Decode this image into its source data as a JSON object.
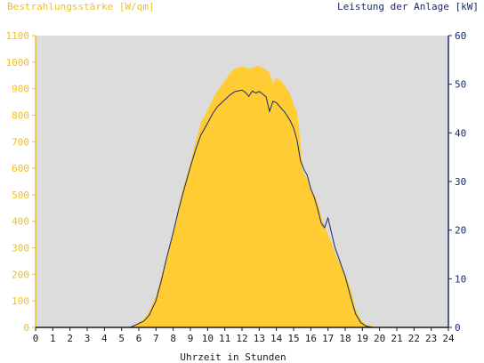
{
  "chart_data": {
    "type": "area",
    "left_axis_label": "Bestrahlungsstärke [W/qm]",
    "right_axis_label": "Leistung der Anlage [kW]",
    "xlabel": "Uhrzeit in Stunden",
    "xlim": [
      0,
      24
    ],
    "ylim_left": [
      0,
      1100
    ],
    "ylim_right": [
      0,
      60
    ],
    "x_ticks": [
      "0",
      "1",
      "2",
      "3",
      "4",
      "5",
      "6",
      "7",
      "8",
      "9",
      "10",
      "11",
      "12",
      "13",
      "14",
      "15",
      "16",
      "17",
      "18",
      "19",
      "20",
      "21",
      "22",
      "23",
      "24"
    ],
    "y_ticks_left": [
      "0",
      "100",
      "200",
      "300",
      "400",
      "500",
      "600",
      "700",
      "800",
      "900",
      "1000",
      "1100"
    ],
    "y_ticks_right": [
      "0",
      "10",
      "20",
      "30",
      "40",
      "50",
      "60"
    ],
    "grid": false,
    "colors": {
      "plot_background": "#dcdcdc",
      "irradiance_fill": "#ffcc33",
      "power_line": "#1a2a6a",
      "left_axis_text": "#f0c020",
      "right_axis_text": "#1a2a6a"
    },
    "series": [
      {
        "axis": "left",
        "style": "area",
        "x": [
          0,
          5.5,
          5.8,
          6,
          6.3,
          6.6,
          7,
          7.3,
          7.6,
          8,
          8.3,
          8.6,
          9,
          9.3,
          9.6,
          10,
          10.3,
          10.6,
          11,
          11.3,
          11.6,
          12,
          12.2,
          12.5,
          12.8,
          13,
          13.3,
          13.6,
          13.8,
          14,
          14.2,
          14.5,
          14.8,
          15,
          15.2,
          15.4,
          15.5,
          15.6,
          15.8,
          16,
          16.2,
          16.4,
          16.6,
          16.8,
          17,
          17.2,
          17.4,
          17.6,
          17.8,
          18,
          18.3,
          18.6,
          18.9,
          19.2,
          19.6,
          20,
          24
        ],
        "y": [
          0,
          0,
          10,
          20,
          30,
          60,
          120,
          190,
          260,
          360,
          450,
          530,
          620,
          700,
          770,
          820,
          860,
          895,
          930,
          960,
          975,
          985,
          980,
          975,
          985,
          985,
          975,
          960,
          920,
          940,
          935,
          910,
          880,
          840,
          810,
          700,
          600,
          580,
          560,
          520,
          500,
          470,
          420,
          380,
          350,
          320,
          280,
          250,
          230,
          200,
          150,
          70,
          30,
          10,
          5,
          0,
          0
        ]
      },
      {
        "axis": "right",
        "style": "line",
        "x": [
          0,
          5.5,
          6,
          6.3,
          6.6,
          7,
          7.3,
          7.6,
          8,
          8.3,
          8.6,
          9,
          9.3,
          9.6,
          10,
          10.3,
          10.6,
          11,
          11.3,
          11.6,
          12,
          12.2,
          12.4,
          12.6,
          12.8,
          13,
          13.2,
          13.4,
          13.6,
          13.8,
          14,
          14.2,
          14.5,
          14.8,
          15,
          15.2,
          15.4,
          15.6,
          15.8,
          16,
          16.2,
          16.4,
          16.6,
          16.8,
          17,
          17.2,
          17.4,
          17.6,
          17.8,
          18,
          18.3,
          18.6,
          18.9,
          19.2,
          19.6,
          20,
          24
        ],
        "y": [
          0,
          0,
          0.8,
          1.3,
          2.5,
          5.5,
          9.5,
          14,
          19.5,
          24,
          28,
          33,
          36.5,
          39.5,
          42,
          44,
          45.5,
          46.8,
          47.8,
          48.5,
          48.8,
          48.3,
          47.5,
          48.6,
          48.2,
          48.5,
          48,
          47.4,
          44.4,
          46.5,
          46.2,
          45.4,
          44.2,
          42.5,
          41,
          38.5,
          34.3,
          32.5,
          31.2,
          28.5,
          26.8,
          24.3,
          21.5,
          20.5,
          22.5,
          19.5,
          16.5,
          14.5,
          12.5,
          10.5,
          6.5,
          2.8,
          1,
          0.3,
          0,
          0,
          0
        ]
      }
    ]
  }
}
